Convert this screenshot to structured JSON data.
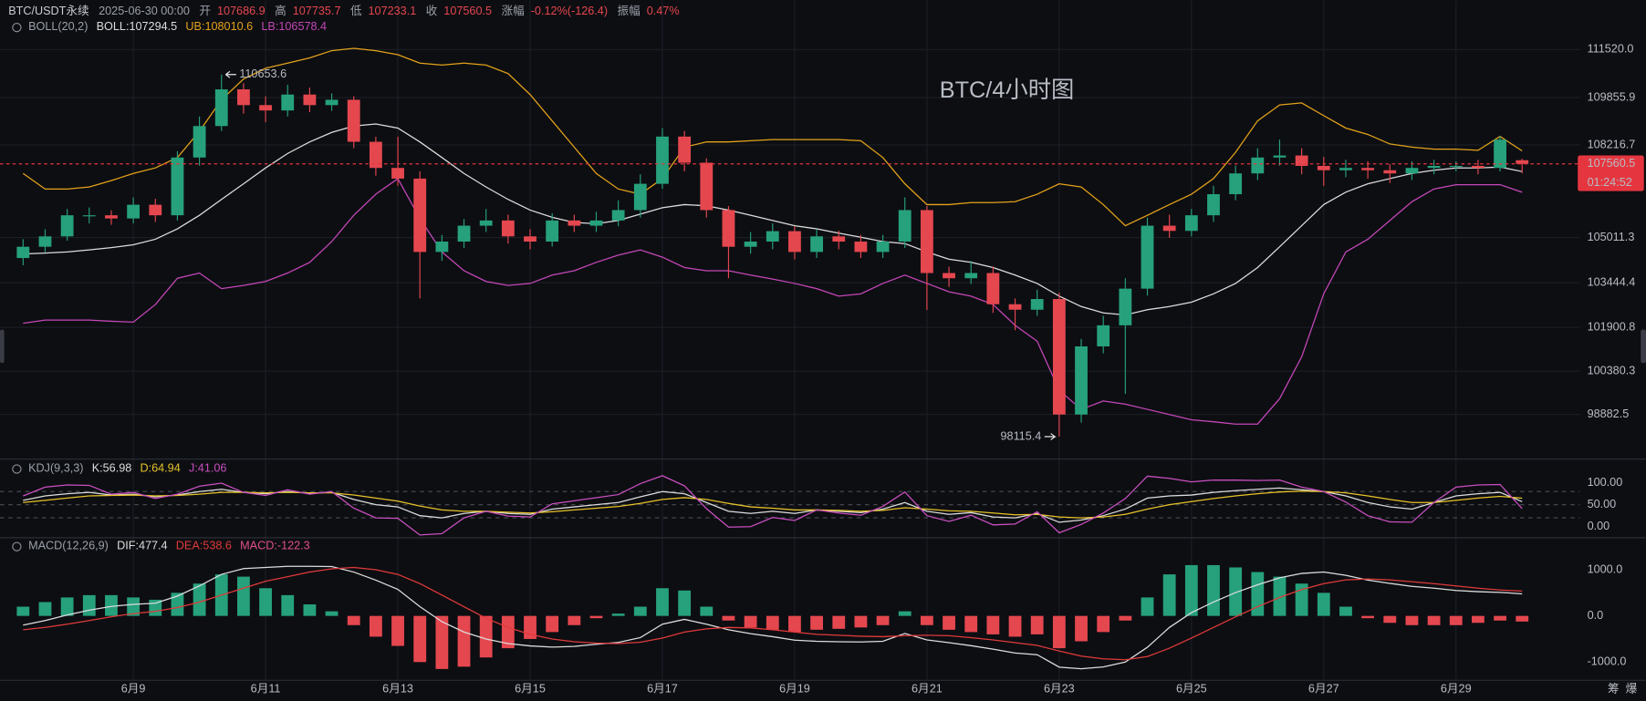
{
  "header": {
    "symbol": "BTC/USDT永续",
    "time": "2025-06-30 00:00",
    "open": "开",
    "high": "高",
    "low": "低",
    "close": "收",
    "change_label": "涨幅",
    "change": "-0.12%(-126.4)",
    "amplitude_label": "振幅",
    "amplitude": "0.47%"
  },
  "toolbar": [
    "筹",
    "爆"
  ],
  "chart_data": [
    {
      "type": "candlestick",
      "title": "BTC/4小时图",
      "title_color": "#e8363d",
      "indicator": "BOLL(20,2)",
      "categories": [
        null,
        null,
        null,
        null,
        null,
        "6月9",
        null,
        null,
        null,
        null,
        null,
        "6月11",
        null,
        null,
        null,
        null,
        null,
        "6月13",
        null,
        null,
        null,
        null,
        null,
        "6月15",
        null,
        null,
        null,
        null,
        null,
        "6月17",
        null,
        null,
        null,
        null,
        null,
        "6月19",
        null,
        null,
        null,
        null,
        null,
        "6月21",
        null,
        null,
        null,
        null,
        null,
        "6月23",
        null,
        null,
        null,
        null,
        null,
        "6月25",
        null,
        null,
        null,
        null,
        null,
        "6月27",
        null,
        null,
        null,
        null,
        null,
        "6月29",
        null,
        null,
        null
      ],
      "open": [
        104300,
        104690,
        105050,
        105780,
        105780,
        105670,
        106145,
        105780,
        107780,
        108870,
        110140,
        109595,
        109410,
        109960,
        109595,
        109780,
        108325,
        107420,
        107050,
        104510,
        104870,
        105420,
        105600,
        105050,
        104870,
        105600,
        105420,
        105600,
        105960,
        106870,
        108505,
        107600,
        105960,
        104690,
        104870,
        105230,
        104510,
        105050,
        104870,
        104510,
        104870,
        105960,
        103780,
        103600,
        103780,
        102700,
        102510,
        102880,
        98880,
        101240,
        101970,
        103240,
        105420,
        105240,
        105780,
        106510,
        107230,
        107780,
        107850,
        107490,
        107340,
        107420,
        107340,
        107230,
        107420,
        107490,
        107490,
        107420,
        107686.9
      ],
      "high": [
        104950,
        105300,
        106000,
        106050,
        105950,
        106400,
        106350,
        108000,
        109200,
        110653.6,
        110350,
        109900,
        110300,
        110200,
        110000,
        109900,
        108500,
        108500,
        107300,
        105100,
        105650,
        106000,
        105800,
        105300,
        105850,
        105800,
        105900,
        106300,
        107200,
        108800,
        108700,
        107750,
        106100,
        105200,
        105500,
        105400,
        105300,
        105250,
        105100,
        105100,
        106400,
        106100,
        104000,
        104200,
        104000,
        102900,
        103200,
        103100,
        101500,
        102300,
        103600,
        105700,
        105800,
        106000,
        106800,
        107500,
        108100,
        108400,
        108100,
        107800,
        107700,
        107650,
        107550,
        107650,
        107700,
        107650,
        107700,
        108520,
        107735.7
      ],
      "low": [
        104050,
        104500,
        104900,
        105500,
        105450,
        105500,
        105550,
        105600,
        107500,
        108700,
        109300,
        109000,
        109200,
        109350,
        109400,
        108100,
        107150,
        106800,
        102900,
        104200,
        104650,
        105200,
        104800,
        104600,
        104700,
        105200,
        105200,
        105400,
        105700,
        106700,
        107300,
        105700,
        103600,
        104450,
        104600,
        104250,
        104300,
        104600,
        104300,
        104300,
        104650,
        102500,
        103300,
        103400,
        102400,
        101800,
        102300,
        98115.4,
        98600,
        101000,
        99600,
        103000,
        105000,
        105050,
        105550,
        106300,
        107000,
        107500,
        107200,
        106800,
        107100,
        107050,
        106900,
        107000,
        107200,
        107300,
        107200,
        107300,
        107233.1
      ],
      "close": [
        104690,
        105050,
        105780,
        105780,
        105670,
        106145,
        105780,
        107780,
        108870,
        110140,
        109595,
        109410,
        109960,
        109595,
        109780,
        108325,
        107420,
        107050,
        104510,
        104870,
        105420,
        105600,
        105050,
        104870,
        105600,
        105420,
        105600,
        105960,
        106870,
        108505,
        107600,
        105960,
        104690,
        104870,
        105230,
        104510,
        105050,
        104870,
        104510,
        104870,
        105960,
        103780,
        103600,
        103780,
        102700,
        102510,
        102880,
        98880,
        101240,
        101970,
        103240,
        105420,
        105240,
        105780,
        106510,
        107230,
        107780,
        107850,
        107490,
        107340,
        107420,
        107340,
        107230,
        107420,
        107490,
        107490,
        107420,
        108400,
        107560.5
      ],
      "series": [
        {
          "name": "BOLL:107294.5",
          "color": "#dcdcdc",
          "values": [
            104440,
            104470,
            104510,
            104580,
            104660,
            104760,
            104950,
            105310,
            105780,
            106330,
            106870,
            107420,
            107920,
            108320,
            108650,
            108870,
            108940,
            108800,
            108320,
            107780,
            107230,
            106760,
            106330,
            105960,
            105710,
            105530,
            105490,
            105600,
            105820,
            106040,
            106150,
            106110,
            105960,
            105780,
            105600,
            105420,
            105310,
            105160,
            105020,
            104870,
            104800,
            104510,
            104260,
            104150,
            103970,
            103710,
            103420,
            102980,
            102620,
            102400,
            102330,
            102510,
            102620,
            102770,
            103060,
            103420,
            103970,
            104690,
            105420,
            106150,
            106580,
            106870,
            107050,
            107230,
            107340,
            107420,
            107420,
            107450,
            107294.5
          ]
        },
        {
          "name": "UB:108010.6",
          "color": "#e3a21a",
          "values": [
            107230,
            106690,
            106690,
            106760,
            106980,
            107230,
            107420,
            107780,
            108690,
            109780,
            110500,
            110870,
            111050,
            111230,
            111480,
            111560,
            111480,
            111340,
            111050,
            110980,
            111050,
            110980,
            110690,
            109960,
            109050,
            108140,
            107230,
            106690,
            106510,
            107050,
            108140,
            108320,
            108320,
            108360,
            108400,
            108400,
            108400,
            108400,
            108360,
            107780,
            106870,
            106150,
            106150,
            106220,
            106220,
            106250,
            106510,
            106870,
            106760,
            106150,
            105420,
            105780,
            106150,
            106510,
            107050,
            107960,
            109050,
            109600,
            109670,
            109230,
            108800,
            108580,
            108250,
            108140,
            108070,
            108070,
            108030,
            108510,
            108010.6
          ]
        },
        {
          "name": "LB:106578.4",
          "color": "#c447b8",
          "values": [
            102040,
            102150,
            102150,
            102150,
            102110,
            102080,
            102690,
            103600,
            103780,
            103240,
            103350,
            103490,
            103780,
            104150,
            104870,
            105780,
            106510,
            107050,
            105670,
            104510,
            103860,
            103490,
            103350,
            103420,
            103710,
            103860,
            104150,
            104400,
            104580,
            104330,
            103970,
            103860,
            103860,
            103710,
            103570,
            103420,
            103240,
            102980,
            103060,
            103420,
            103710,
            103420,
            103130,
            102980,
            102690,
            101970,
            101420,
            99720,
            99060,
            99350,
            99240,
            99060,
            98880,
            98700,
            98630,
            98550,
            98550,
            99430,
            100880,
            103060,
            104510,
            104950,
            105600,
            106250,
            106690,
            106840,
            106840,
            106840,
            106578.4
          ]
        }
      ],
      "up_color": "#26a17b",
      "down_color": "#e5474f",
      "last_price_color": "#e5363f",
      "countdown": "01:24:52",
      "ylim": [
        97430,
        112864
      ],
      "yticks": [
        {
          "value": 111520,
          "label": "111520.0"
        },
        109855.9,
        108216.7,
        105011.3,
        103444.4,
        101900.8,
        100380.3,
        98882.5
      ],
      "grid": true
    },
    {
      "type": "line",
      "title": "KDJ(9,3,3)",
      "series": [
        {
          "name": "K:56.98",
          "color": "#dcdcdc",
          "values": [
            60,
            70,
            75,
            78,
            72,
            74,
            68,
            72,
            80,
            85,
            78,
            75,
            80,
            76,
            78,
            62,
            50,
            45,
            25,
            20,
            30,
            35,
            30,
            28,
            40,
            45,
            50,
            55,
            68,
            80,
            75,
            55,
            35,
            30,
            35,
            30,
            38,
            35,
            32,
            40,
            55,
            35,
            28,
            32,
            22,
            20,
            30,
            10,
            15,
            25,
            40,
            65,
            70,
            72,
            78,
            82,
            85,
            88,
            84,
            80,
            70,
            55,
            45,
            40,
            55,
            70,
            75,
            78,
            56.98
          ]
        },
        {
          "name": "D:64.94",
          "color": "#e6c229",
          "values": [
            55,
            60,
            65,
            70,
            71,
            72,
            70,
            71,
            74,
            78,
            78,
            77,
            78,
            77,
            77,
            72,
            65,
            58,
            47,
            38,
            35,
            35,
            33,
            31,
            34,
            38,
            42,
            46,
            53,
            62,
            66,
            62,
            53,
            45,
            42,
            38,
            38,
            37,
            35,
            37,
            43,
            40,
            36,
            35,
            31,
            27,
            28,
            22,
            20,
            22,
            28,
            40,
            50,
            57,
            64,
            70,
            75,
            79,
            81,
            80,
            77,
            70,
            62,
            55,
            55,
            60,
            65,
            69,
            64.94
          ]
        },
        {
          "name": "J:41.06",
          "color": "#c94fc0",
          "values": [
            70,
            90,
            95,
            94,
            74,
            78,
            64,
            74,
            92,
            99,
            78,
            71,
            84,
            74,
            80,
            42,
            20,
            19,
            -19,
            -16,
            20,
            35,
            24,
            22,
            52,
            59,
            66,
            73,
            98,
            116,
            93,
            41,
            -1,
            0,
            21,
            14,
            38,
            31,
            26,
            46,
            79,
            25,
            12,
            26,
            4,
            6,
            34,
            -14,
            5,
            31,
            64,
            115,
            110,
            102,
            106,
            106,
            105,
            106,
            90,
            80,
            56,
            25,
            11,
            10,
            55,
            90,
            95,
            96,
            41.06
          ]
        }
      ],
      "ylim": [
        -24,
        148
      ],
      "yticks": [
        {
          "value": 0,
          "label": "0.00"
        },
        {
          "value": 50,
          "label": "50.00"
        },
        {
          "value": 100,
          "label": "100.00"
        }
      ],
      "reference_lines": [
        20,
        50,
        80
      ]
    },
    {
      "type": "macd",
      "title": "MACD(12,26,9)",
      "series": [
        {
          "name": "DIF:477.4",
          "color": "#dcdcdc",
          "values": [
            -200,
            -100,
            20,
            125,
            205,
            250,
            275,
            430,
            650,
            900,
            1025,
            1050,
            1075,
            1075,
            1070,
            950,
            775,
            575,
            200,
            -125,
            -350,
            -500,
            -600,
            -650,
            -675,
            -660,
            -615,
            -575,
            -470,
            -180,
            -75,
            -180,
            -300,
            -385,
            -450,
            -525,
            -550,
            -560,
            -565,
            -550,
            -380,
            -520,
            -580,
            -645,
            -720,
            -805,
            -840,
            -1110,
            -1145,
            -1105,
            -1000,
            -680,
            -250,
            70,
            300,
            505,
            675,
            825,
            920,
            950,
            880,
            775,
            705,
            640,
            600,
            550,
            525,
            510,
            477.4
          ]
        },
        {
          "name": "DEA:538.6",
          "color": "#e03a3a",
          "values": [
            -300,
            -250,
            -180,
            -100,
            -20,
            50,
            100,
            180,
            300,
            450,
            600,
            750,
            850,
            950,
            1020,
            1050,
            1000,
            900,
            700,
            450,
            200,
            -50,
            -250,
            -400,
            -500,
            -560,
            -590,
            -600,
            -570,
            -480,
            -350,
            -280,
            -250,
            -260,
            -300,
            -350,
            -400,
            -420,
            -440,
            -450,
            -430,
            -420,
            -430,
            -470,
            -520,
            -580,
            -640,
            -760,
            -870,
            -930,
            -950,
            -880,
            -700,
            -480,
            -250,
            -20,
            200,
            400,
            570,
            700,
            780,
            800,
            780,
            740,
            700,
            650,
            600,
            560,
            538.6
          ]
        }
      ],
      "histogram": {
        "name": "MACD:-122.3",
        "color": "#e0508a",
        "up_color": "#26a17b",
        "down_color": "#e5474f",
        "values": [
          200,
          300,
          400,
          450,
          450,
          400,
          350,
          500,
          700,
          900,
          850,
          600,
          450,
          250,
          100,
          -200,
          -450,
          -650,
          -1000,
          -1150,
          -1100,
          -900,
          -700,
          -500,
          -350,
          -200,
          -50,
          50,
          200,
          600,
          550,
          200,
          -100,
          -250,
          -300,
          -350,
          -300,
          -280,
          -250,
          -200,
          100,
          -200,
          -300,
          -350,
          -400,
          -450,
          -400,
          -700,
          -550,
          -350,
          -100,
          400,
          900,
          1100,
          1100,
          1050,
          950,
          850,
          700,
          500,
          200,
          -50,
          -150,
          -200,
          -200,
          -200,
          -150,
          -100,
          -122.3
        ]
      },
      "ylim": [
        -1430,
        1660
      ],
      "yticks": [
        {
          "value": 1000,
          "label": "1000.0"
        },
        {
          "value": 0,
          "label": "0.0"
        },
        {
          "value": -1000,
          "label": "-1000.0"
        }
      ]
    }
  ]
}
